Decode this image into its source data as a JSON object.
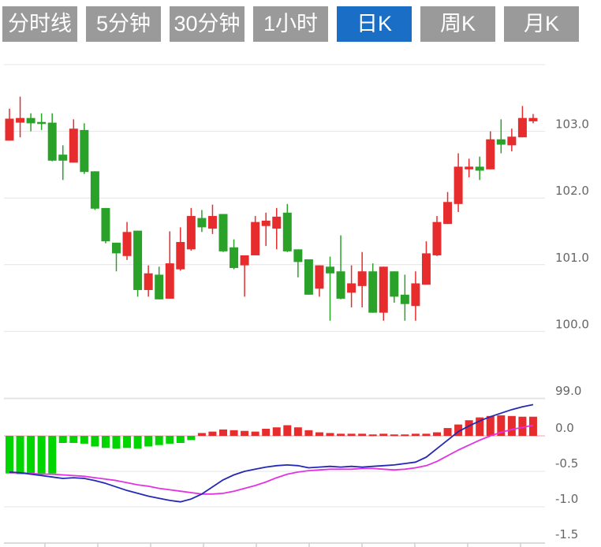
{
  "active_tab": "日K",
  "tabs": [
    {
      "label": "分时线",
      "active": false
    },
    {
      "label": "5分钟",
      "active": false
    },
    {
      "label": "30分钟",
      "active": false
    },
    {
      "label": "1小时",
      "active": false
    },
    {
      "label": "日K",
      "active": true
    },
    {
      "label": "周K",
      "active": false
    },
    {
      "label": "月K",
      "active": false
    }
  ],
  "colors": {
    "tab_bg": "#9a9a9a",
    "tab_active_bg": "#1a6ec5",
    "tab_text": "#ffffff",
    "up": "#e62c2c",
    "down": "#2aa22a",
    "macd_hist_neg": "#00d500",
    "macd_hist_pos": "#e62c2c",
    "dif_line": "#2429b3",
    "dea_line": "#e332e3",
    "grid": "#e4e4e4",
    "axis_line": "#cfcfcf",
    "zero_line": "#f09cb0",
    "axis_text": "#666666"
  },
  "chart_data": {
    "type": "candlestick+macd",
    "grid": true,
    "legend": false,
    "price_panel": {
      "y_ticks": [
        "103.0",
        "102.0",
        "101.0",
        "100.0",
        "99.0"
      ],
      "y_tick_values": [
        103.0,
        102.0,
        101.0,
        100.0,
        99.0
      ],
      "ylim": [
        99.0,
        104.0
      ],
      "candles": [
        {
          "o": 102.86,
          "h": 103.34,
          "l": 102.86,
          "c": 103.19
        },
        {
          "o": 103.13,
          "h": 103.52,
          "l": 102.91,
          "c": 103.2
        },
        {
          "o": 103.2,
          "h": 103.27,
          "l": 103.0,
          "c": 103.12
        },
        {
          "o": 103.14,
          "h": 103.27,
          "l": 103.02,
          "c": 103.11
        },
        {
          "o": 103.13,
          "h": 103.27,
          "l": 102.55,
          "c": 102.56
        },
        {
          "o": 102.65,
          "h": 102.79,
          "l": 102.27,
          "c": 102.56
        },
        {
          "o": 102.53,
          "h": 103.18,
          "l": 102.53,
          "c": 103.04
        },
        {
          "o": 103.02,
          "h": 103.12,
          "l": 102.36,
          "c": 102.39
        },
        {
          "o": 102.4,
          "h": 102.4,
          "l": 101.82,
          "c": 101.84
        },
        {
          "o": 101.85,
          "h": 101.85,
          "l": 101.32,
          "c": 101.35
        },
        {
          "o": 101.33,
          "h": 101.33,
          "l": 100.9,
          "c": 101.17
        },
        {
          "o": 101.13,
          "h": 101.64,
          "l": 101.07,
          "c": 101.49
        },
        {
          "o": 101.51,
          "h": 101.51,
          "l": 100.52,
          "c": 100.62
        },
        {
          "o": 100.62,
          "h": 100.99,
          "l": 100.52,
          "c": 100.87
        },
        {
          "o": 100.85,
          "h": 100.97,
          "l": 100.48,
          "c": 100.48
        },
        {
          "o": 100.49,
          "h": 101.5,
          "l": 100.49,
          "c": 101.02
        },
        {
          "o": 100.93,
          "h": 101.56,
          "l": 100.91,
          "c": 101.34
        },
        {
          "o": 101.23,
          "h": 101.85,
          "l": 101.21,
          "c": 101.73
        },
        {
          "o": 101.7,
          "h": 101.82,
          "l": 101.49,
          "c": 101.56
        },
        {
          "o": 101.54,
          "h": 101.9,
          "l": 101.46,
          "c": 101.73
        },
        {
          "o": 101.76,
          "h": 101.76,
          "l": 101.19,
          "c": 101.2
        },
        {
          "o": 101.26,
          "h": 101.38,
          "l": 100.93,
          "c": 100.95
        },
        {
          "o": 100.99,
          "h": 101.14,
          "l": 100.52,
          "c": 101.14
        },
        {
          "o": 101.14,
          "h": 101.73,
          "l": 101.14,
          "c": 101.64
        },
        {
          "o": 101.58,
          "h": 101.78,
          "l": 101.28,
          "c": 101.66
        },
        {
          "o": 101.54,
          "h": 101.85,
          "l": 101.23,
          "c": 101.72
        },
        {
          "o": 101.78,
          "h": 101.91,
          "l": 101.19,
          "c": 101.2
        },
        {
          "o": 101.23,
          "h": 101.23,
          "l": 100.81,
          "c": 101.04
        },
        {
          "o": 101.08,
          "h": 101.08,
          "l": 100.55,
          "c": 100.55
        },
        {
          "o": 100.64,
          "h": 100.99,
          "l": 100.52,
          "c": 100.99
        },
        {
          "o": 100.97,
          "h": 101.12,
          "l": 100.16,
          "c": 100.87
        },
        {
          "o": 100.9,
          "h": 101.44,
          "l": 100.48,
          "c": 100.49
        },
        {
          "o": 100.58,
          "h": 100.99,
          "l": 100.36,
          "c": 100.72
        },
        {
          "o": 100.68,
          "h": 101.19,
          "l": 100.36,
          "c": 100.9
        },
        {
          "o": 100.9,
          "h": 101.02,
          "l": 100.28,
          "c": 100.28
        },
        {
          "o": 100.28,
          "h": 100.97,
          "l": 100.16,
          "c": 100.97
        },
        {
          "o": 100.9,
          "h": 100.9,
          "l": 100.43,
          "c": 100.52
        },
        {
          "o": 100.55,
          "h": 100.85,
          "l": 100.16,
          "c": 100.41
        },
        {
          "o": 100.38,
          "h": 100.9,
          "l": 100.16,
          "c": 100.72
        },
        {
          "o": 100.7,
          "h": 101.35,
          "l": 100.7,
          "c": 101.17
        },
        {
          "o": 101.14,
          "h": 101.73,
          "l": 101.13,
          "c": 101.64
        },
        {
          "o": 101.61,
          "h": 102.09,
          "l": 101.61,
          "c": 101.94
        },
        {
          "o": 101.91,
          "h": 102.67,
          "l": 101.79,
          "c": 102.47
        },
        {
          "o": 102.43,
          "h": 102.59,
          "l": 102.31,
          "c": 102.47
        },
        {
          "o": 102.47,
          "h": 102.62,
          "l": 102.27,
          "c": 102.41
        },
        {
          "o": 102.43,
          "h": 103.0,
          "l": 102.43,
          "c": 102.88
        },
        {
          "o": 102.88,
          "h": 103.18,
          "l": 102.67,
          "c": 102.8
        },
        {
          "o": 102.79,
          "h": 103.04,
          "l": 102.7,
          "c": 102.92
        },
        {
          "o": 102.91,
          "h": 103.38,
          "l": 102.91,
          "c": 103.2
        },
        {
          "o": 103.15,
          "h": 103.26,
          "l": 103.12,
          "c": 103.2
        }
      ]
    },
    "macd_panel": {
      "y_ticks": [
        "0.0",
        "-0.5",
        "-1.0",
        "-1.5"
      ],
      "y_tick_values": [
        0.0,
        -0.5,
        -1.0,
        -1.5
      ],
      "ylim": [
        -1.55,
        0.52
      ],
      "histogram": [
        -0.53,
        -0.54,
        -0.54,
        -0.53,
        -0.53,
        -0.1,
        -0.1,
        -0.11,
        -0.15,
        -0.17,
        -0.18,
        -0.17,
        -0.18,
        -0.15,
        -0.13,
        -0.11,
        -0.1,
        -0.06,
        0.04,
        0.06,
        0.09,
        0.08,
        0.07,
        0.06,
        0.1,
        0.12,
        0.15,
        0.12,
        0.08,
        0.05,
        0.04,
        0.03,
        0.03,
        0.03,
        0.02,
        0.03,
        0.02,
        0.02,
        0.03,
        0.03,
        0.05,
        0.11,
        0.16,
        0.22,
        0.26,
        0.28,
        0.29,
        0.28,
        0.27,
        0.27
      ],
      "dif": [
        -0.51,
        -0.52,
        -0.54,
        -0.56,
        -0.58,
        -0.6,
        -0.59,
        -0.6,
        -0.63,
        -0.67,
        -0.72,
        -0.77,
        -0.81,
        -0.85,
        -0.88,
        -0.91,
        -0.93,
        -0.89,
        -0.82,
        -0.72,
        -0.62,
        -0.55,
        -0.5,
        -0.47,
        -0.44,
        -0.42,
        -0.41,
        -0.42,
        -0.45,
        -0.44,
        -0.43,
        -0.44,
        -0.43,
        -0.44,
        -0.43,
        -0.42,
        -0.41,
        -0.39,
        -0.37,
        -0.3,
        -0.18,
        -0.06,
        0.06,
        0.14,
        0.21,
        0.27,
        0.32,
        0.37,
        0.41,
        0.44
      ],
      "dea": [
        -0.52,
        -0.52,
        -0.53,
        -0.54,
        -0.54,
        -0.55,
        -0.56,
        -0.57,
        -0.59,
        -0.61,
        -0.63,
        -0.66,
        -0.69,
        -0.71,
        -0.74,
        -0.76,
        -0.78,
        -0.8,
        -0.82,
        -0.82,
        -0.81,
        -0.78,
        -0.74,
        -0.7,
        -0.65,
        -0.59,
        -0.54,
        -0.51,
        -0.49,
        -0.48,
        -0.47,
        -0.47,
        -0.47,
        -0.46,
        -0.46,
        -0.47,
        -0.48,
        -0.47,
        -0.45,
        -0.42,
        -0.36,
        -0.28,
        -0.2,
        -0.13,
        -0.06,
        0.0,
        0.05,
        0.09,
        0.12,
        0.15
      ]
    }
  }
}
